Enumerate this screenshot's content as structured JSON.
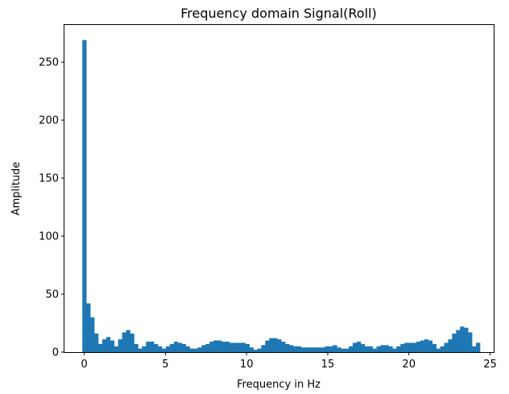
{
  "chart_data": {
    "type": "bar",
    "title": "Frequency domain Signal(Roll)",
    "xlabel": "Frequency in Hz",
    "ylabel": "Amplitude",
    "xlim": [
      -1.225,
      25.225
    ],
    "ylim": [
      0,
      282
    ],
    "x_ticks": [
      0,
      5,
      10,
      15,
      20,
      25
    ],
    "y_ticks": [
      0,
      50,
      100,
      150,
      200,
      250
    ],
    "bar_width": 0.245,
    "color": "#1f77b4",
    "grid": false,
    "x": [
      0.0,
      0.245,
      0.49,
      0.735,
      0.98,
      1.225,
      1.47,
      1.715,
      1.96,
      2.205,
      2.45,
      2.695,
      2.94,
      3.185,
      3.43,
      3.675,
      3.92,
      4.165,
      4.41,
      4.655,
      4.9,
      5.145,
      5.39,
      5.635,
      5.88,
      6.125,
      6.37,
      6.615,
      6.86,
      7.105,
      7.35,
      7.595,
      7.84,
      8.085,
      8.33,
      8.575,
      8.82,
      9.065,
      9.31,
      9.555,
      9.8,
      10.045,
      10.29,
      10.535,
      10.78,
      11.025,
      11.27,
      11.515,
      11.76,
      12.005,
      12.25,
      12.495,
      12.74,
      12.985,
      13.23,
      13.475,
      13.72,
      13.965,
      14.21,
      14.455,
      14.7,
      14.945,
      15.19,
      15.435,
      15.68,
      15.925,
      16.17,
      16.415,
      16.66,
      16.905,
      17.15,
      17.395,
      17.64,
      17.885,
      18.13,
      18.375,
      18.62,
      18.865,
      19.11,
      19.355,
      19.6,
      19.845,
      20.09,
      20.335,
      20.58,
      20.825,
      21.07,
      21.315,
      21.56,
      21.805,
      22.05,
      22.295,
      22.54,
      22.785,
      23.03,
      23.275,
      23.52,
      23.765,
      24.01,
      24.255
    ],
    "values": [
      269,
      42,
      30,
      16,
      7,
      11,
      13,
      10,
      5,
      11,
      17,
      19,
      16,
      7,
      3,
      5,
      9,
      9,
      7,
      5,
      3,
      5,
      7,
      9,
      8,
      7,
      5,
      3,
      3,
      4,
      6,
      7,
      9,
      10,
      10,
      9,
      9,
      8,
      8,
      8,
      8,
      7,
      4,
      2,
      3,
      6,
      10,
      12,
      12,
      11,
      9,
      7,
      6,
      5,
      5,
      4,
      4,
      4,
      4,
      4,
      4,
      5,
      5,
      6,
      4,
      3,
      3,
      5,
      8,
      9,
      7,
      5,
      5,
      3,
      5,
      6,
      6,
      5,
      3,
      5,
      7,
      8,
      8,
      8,
      9,
      10,
      11,
      10,
      7,
      3,
      5,
      8,
      11,
      16,
      19,
      22,
      21,
      17,
      5,
      8
    ]
  }
}
